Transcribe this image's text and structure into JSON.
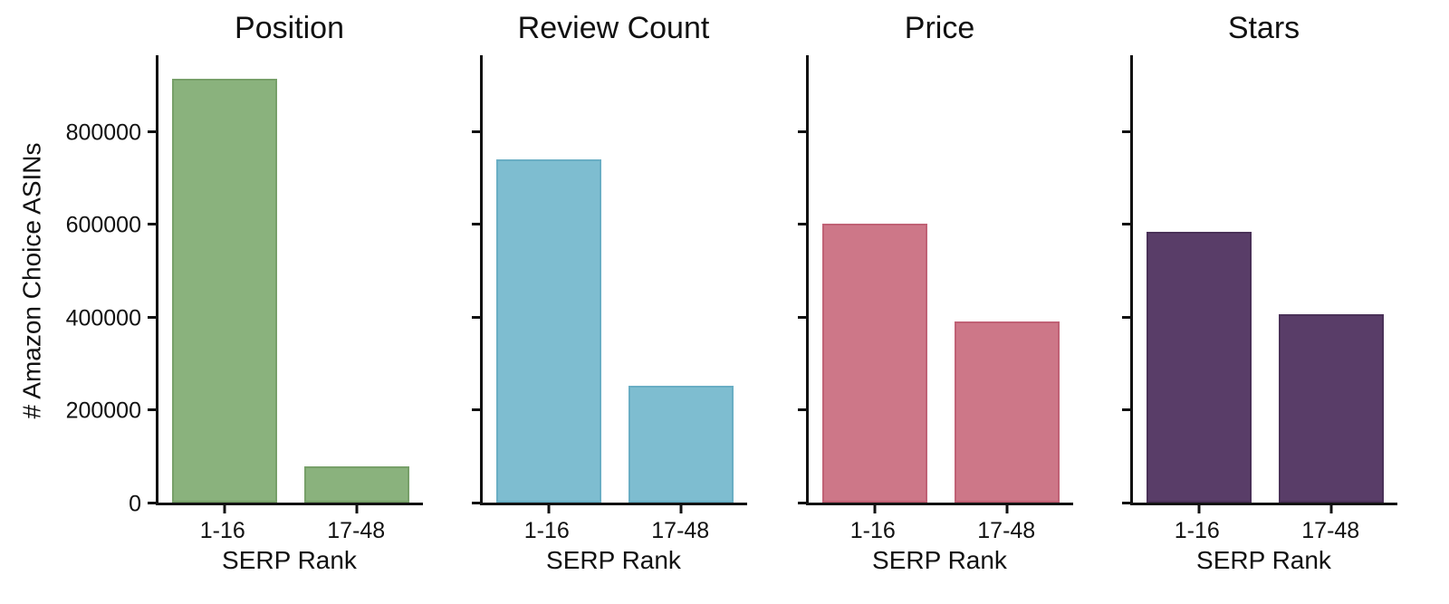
{
  "figure": {
    "background_color": "#ffffff",
    "axis_color": "#111111",
    "shared_ylabel": "# Amazon Choice ASINs",
    "shared_xlabel": "SERP Rank",
    "categories": [
      "1-16",
      "17-48"
    ]
  },
  "chart_data": [
    {
      "type": "bar",
      "title": "Position",
      "categories": [
        "1-16",
        "17-48"
      ],
      "values": [
        915000,
        78000
      ],
      "bar_color": "#8ab27d",
      "bar_edge_color": "#77a069",
      "xlabel": "SERP Rank",
      "ylabel": "# Amazon Choice ASINs",
      "ylim": [
        0,
        965000
      ],
      "yticks": [
        0,
        200000,
        400000,
        600000,
        800000
      ],
      "ytick_labels_visible": true,
      "grid": false,
      "legend": "none"
    },
    {
      "type": "bar",
      "title": "Review Count",
      "categories": [
        "1-16",
        "17-48"
      ],
      "values": [
        740000,
        253000
      ],
      "bar_color": "#7ebdd0",
      "bar_edge_color": "#69aec4",
      "xlabel": "SERP Rank",
      "ylabel": "",
      "ylim": [
        0,
        965000
      ],
      "yticks": [
        0,
        200000,
        400000,
        600000,
        800000
      ],
      "ytick_labels_visible": false,
      "grid": false,
      "legend": "none"
    },
    {
      "type": "bar",
      "title": "Price",
      "categories": [
        "1-16",
        "17-48"
      ],
      "values": [
        601000,
        391000
      ],
      "bar_color": "#cd7788",
      "bar_edge_color": "#c06175",
      "xlabel": "SERP Rank",
      "ylabel": "",
      "ylim": [
        0,
        965000
      ],
      "yticks": [
        0,
        200000,
        400000,
        600000,
        800000
      ],
      "ytick_labels_visible": false,
      "grid": false,
      "legend": "none"
    },
    {
      "type": "bar",
      "title": "Stars",
      "categories": [
        "1-16",
        "17-48"
      ],
      "values": [
        585000,
        406000
      ],
      "bar_color": "#593d68",
      "bar_edge_color": "#4a3158",
      "xlabel": "SERP Rank",
      "ylabel": "",
      "ylim": [
        0,
        965000
      ],
      "yticks": [
        0,
        200000,
        400000,
        600000,
        800000
      ],
      "ytick_labels_visible": false,
      "grid": false,
      "legend": "none"
    }
  ]
}
